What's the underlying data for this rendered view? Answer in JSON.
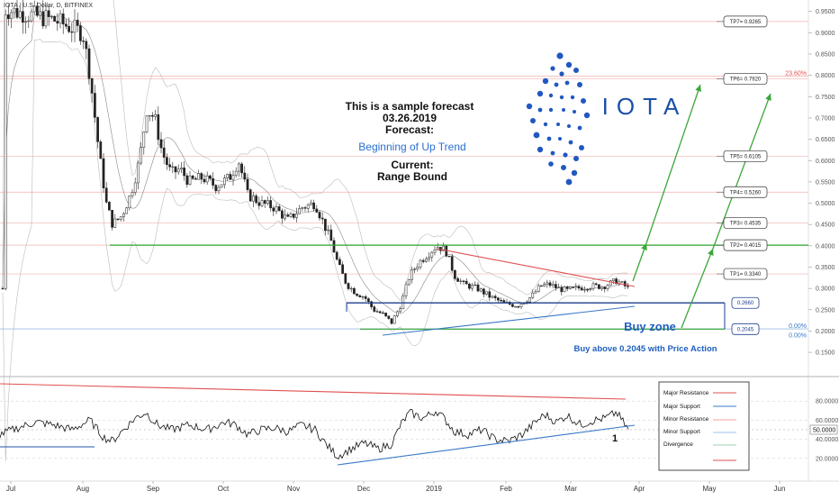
{
  "header": {
    "symbol_text": "IOTA / U.S. Dollar, D, BITFINEX"
  },
  "annotation": {
    "line1": "This is a sample forecast",
    "line2": "03.26.2019",
    "line3": "Forecast:",
    "forecast_value": "Beginning of Up Trend",
    "line4": "Current:",
    "current_value": "Range Bound"
  },
  "logo": {
    "text": "IOTA"
  },
  "buy_zone": {
    "label": "Buy zone",
    "note": "Buy above 0.2045 with Price Action"
  },
  "colors": {
    "accent_blue": "#1f5fbf",
    "support_green": "#2ea02e",
    "resistance_red": "#e05050",
    "forecast_green": "#3aa63a",
    "fib_red": "#e05050",
    "fib_blue": "#3a78c8"
  },
  "chart_data": {
    "type": "candlestick",
    "x_ticks": [
      "Jul",
      "Aug",
      "Sep",
      "Oct",
      "Nov",
      "Dec",
      "2019",
      "Feb",
      "Mar",
      "Apr",
      "May",
      "Jun"
    ],
    "y_ticks": [
      "0.9500",
      "0.9000",
      "0.8500",
      "0.8000",
      "0.7500",
      "0.7000",
      "0.6500",
      "0.6000",
      "0.5500",
      "0.5000",
      "0.4500",
      "0.4000",
      "0.3500",
      "0.3000",
      "0.2500",
      "0.2000",
      "0.1500"
    ],
    "ylim": [
      0.11,
      0.96
    ],
    "targets": [
      {
        "label": "TP7= 0.9265",
        "value": 0.9265
      },
      {
        "label": "TP6= 0.7920",
        "value": 0.792
      },
      {
        "label": "TP5= 0.6105",
        "value": 0.6105
      },
      {
        "label": "TP4= 0.5260",
        "value": 0.526
      },
      {
        "label": "TP3= 0.4535",
        "value": 0.4535
      },
      {
        "label": "TP2= 0.4015",
        "value": 0.4015
      },
      {
        "label": "TP1= 0.3340",
        "value": 0.334
      }
    ],
    "levels": [
      {
        "label": "0.2660",
        "value": 0.266
      },
      {
        "label": "0.2045",
        "value": 0.2045
      }
    ],
    "fib": [
      {
        "label": "23.60%",
        "value": 0.798
      },
      {
        "label": "0.00%",
        "value": 0.205
      },
      {
        "label": "0.00%",
        "value": 0.2
      }
    ],
    "oscillator": {
      "ylim": [
        0,
        100
      ],
      "y_ticks": [
        "80.0000",
        "60.0000",
        "40.0000",
        "20.0000"
      ],
      "current_label": "50.0000",
      "current_value": 50,
      "marker": "1",
      "legend": [
        "Major Resistance",
        "Major Support",
        "Minor Resistance",
        "Minor Support",
        "Divergence"
      ]
    }
  }
}
